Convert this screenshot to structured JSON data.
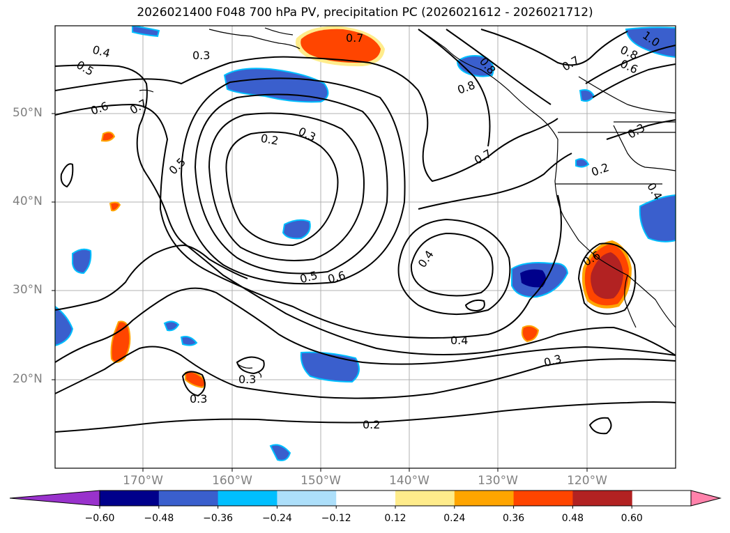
{
  "title": "2026021400 F048 700 hPa PV, precipitation PC (2026021612 - 2026021712)",
  "lat_labels": [
    "50°N",
    "40°N",
    "30°N",
    "20°N"
  ],
  "lon_labels": [
    "170°W",
    "160°W",
    "150°W",
    "140°W",
    "130°W",
    "120°W"
  ],
  "colorbar": {
    "ticks": [
      "−0.60",
      "−0.48",
      "−0.36",
      "−0.24",
      "−0.12",
      "0.12",
      "0.24",
      "0.36",
      "0.48",
      "0.60"
    ],
    "colors": [
      "#9932CC",
      "#00008B",
      "#3A5FCD",
      "#00BFFF",
      "#ADDFFA",
      "#FFFFFF",
      "#FFEC8B",
      "#FFA500",
      "#FF4500",
      "#B22222",
      "#FF82AB"
    ]
  },
  "contour_labels": [
    "0.7",
    "0.4",
    "0.3",
    "0.5",
    "0.6",
    "0.7",
    "0.2",
    "0.3",
    "0.5",
    "0.6",
    "0.8",
    "0.7",
    "0.8",
    "0.6",
    "1.0",
    "0.7",
    "0.3",
    "0.2",
    "0.4",
    "0.5",
    "0.6",
    "0.4",
    "0.4",
    "0.3",
    "0.3",
    "0.3",
    "0.2",
    "0.8"
  ]
}
